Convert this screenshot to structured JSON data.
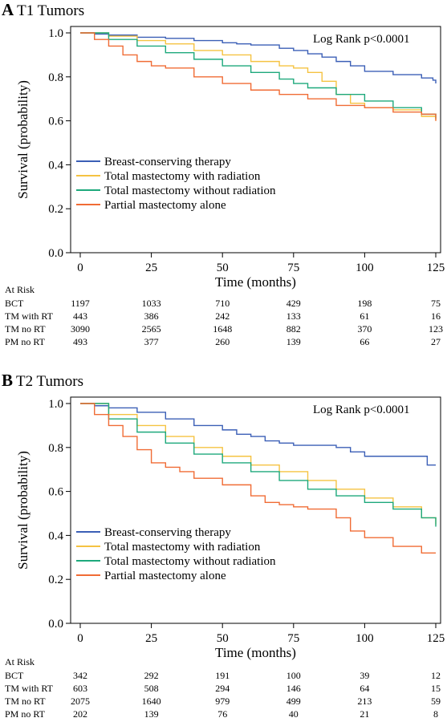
{
  "chart_data": [
    {
      "type": "line",
      "panel_letter": "A",
      "title": "T1 Tumors",
      "xlabel": "Time (months)",
      "ylabel": "Survival (probability)",
      "xlim": [
        0,
        125
      ],
      "ylim": [
        0,
        1.0
      ],
      "x_ticks": [
        0,
        25,
        50,
        75,
        100,
        125
      ],
      "y_ticks": [
        "0.0",
        "0.2",
        "0.4",
        "0.6",
        "0.8",
        "1.0"
      ],
      "annotation": "Log Rank p<0.0001",
      "legend_position": "bottom-left",
      "series": [
        {
          "name": "Breast-conserving therapy",
          "color": "#3b5fb6",
          "x": [
            0,
            5,
            10,
            20,
            30,
            40,
            50,
            55,
            60,
            70,
            75,
            80,
            85,
            90,
            95,
            100,
            110,
            120,
            124,
            125
          ],
          "y": [
            1.0,
            0.995,
            0.99,
            0.98,
            0.975,
            0.965,
            0.955,
            0.95,
            0.945,
            0.93,
            0.92,
            0.905,
            0.89,
            0.87,
            0.85,
            0.825,
            0.81,
            0.795,
            0.785,
            0.77
          ]
        },
        {
          "name": "Total mastectomy with radiation",
          "color": "#f5c342",
          "x": [
            0,
            10,
            20,
            30,
            40,
            50,
            60,
            70,
            75,
            80,
            85,
            90,
            95,
            100,
            110,
            120,
            125
          ],
          "y": [
            1.0,
            0.985,
            0.965,
            0.95,
            0.92,
            0.9,
            0.87,
            0.85,
            0.84,
            0.82,
            0.78,
            0.72,
            0.68,
            0.66,
            0.65,
            0.62,
            0.6
          ]
        },
        {
          "name": "Total mastectomy without radiation",
          "color": "#1ea97c",
          "x": [
            0,
            10,
            20,
            30,
            40,
            50,
            60,
            70,
            75,
            80,
            90,
            100,
            110,
            120,
            125
          ],
          "y": [
            1.0,
            0.97,
            0.94,
            0.91,
            0.88,
            0.85,
            0.82,
            0.79,
            0.77,
            0.75,
            0.72,
            0.69,
            0.66,
            0.63,
            0.61
          ]
        },
        {
          "name": "Partial mastectomy alone",
          "color": "#f06c35",
          "x": [
            0,
            5,
            10,
            15,
            20,
            25,
            30,
            40,
            50,
            60,
            70,
            80,
            90,
            100,
            110,
            120,
            125
          ],
          "y": [
            1.0,
            0.97,
            0.94,
            0.9,
            0.87,
            0.85,
            0.84,
            0.8,
            0.77,
            0.74,
            0.72,
            0.7,
            0.67,
            0.66,
            0.64,
            0.63,
            0.6
          ]
        }
      ],
      "at_risk": {
        "header": "At Risk",
        "rows": [
          {
            "label": "BCT",
            "values": [
              1197,
              1033,
              710,
              429,
              198,
              75
            ]
          },
          {
            "label": "TM with RT",
            "values": [
              443,
              386,
              242,
              133,
              61,
              16
            ]
          },
          {
            "label": "TM no RT",
            "values": [
              3090,
              2565,
              1648,
              882,
              370,
              123
            ]
          },
          {
            "label": "PM no RT",
            "values": [
              493,
              377,
              260,
              139,
              66,
              27
            ]
          }
        ]
      }
    },
    {
      "type": "line",
      "panel_letter": "B",
      "title": "T2 Tumors",
      "xlabel": "Time (months)",
      "ylabel": "Survival (probability)",
      "xlim": [
        0,
        125
      ],
      "ylim": [
        0,
        1.0
      ],
      "x_ticks": [
        0,
        25,
        50,
        75,
        100,
        125
      ],
      "y_ticks": [
        "0.0",
        "0.2",
        "0.4",
        "0.6",
        "0.8",
        "1.0"
      ],
      "annotation": "Log Rank p<0.0001",
      "legend_position": "bottom-left",
      "series": [
        {
          "name": "Breast-conserving therapy",
          "color": "#3b5fb6",
          "x": [
            0,
            5,
            10,
            20,
            30,
            40,
            50,
            55,
            60,
            65,
            70,
            75,
            80,
            90,
            95,
            100,
            110,
            120,
            122,
            125
          ],
          "y": [
            1.0,
            0.99,
            0.98,
            0.96,
            0.93,
            0.9,
            0.88,
            0.86,
            0.85,
            0.83,
            0.82,
            0.81,
            0.81,
            0.8,
            0.78,
            0.76,
            0.76,
            0.76,
            0.72,
            0.72
          ]
        },
        {
          "name": "Total mastectomy with radiation",
          "color": "#f5c342",
          "x": [
            0,
            10,
            20,
            30,
            40,
            50,
            60,
            70,
            80,
            90,
            100,
            110,
            120,
            125
          ],
          "y": [
            1.0,
            0.95,
            0.9,
            0.85,
            0.8,
            0.76,
            0.72,
            0.69,
            0.65,
            0.61,
            0.57,
            0.53,
            0.48,
            0.45
          ]
        },
        {
          "name": "Total mastectomy without radiation",
          "color": "#1ea97c",
          "x": [
            0,
            10,
            20,
            30,
            40,
            50,
            60,
            70,
            80,
            90,
            100,
            110,
            120,
            125
          ],
          "y": [
            1.0,
            0.93,
            0.87,
            0.82,
            0.77,
            0.73,
            0.69,
            0.65,
            0.61,
            0.58,
            0.55,
            0.52,
            0.48,
            0.44
          ]
        },
        {
          "name": "Partial mastectomy alone",
          "color": "#f06c35",
          "x": [
            0,
            5,
            10,
            15,
            20,
            25,
            30,
            35,
            40,
            50,
            60,
            65,
            70,
            75,
            80,
            90,
            95,
            100,
            110,
            120,
            125
          ],
          "y": [
            1.0,
            0.95,
            0.9,
            0.85,
            0.79,
            0.73,
            0.71,
            0.69,
            0.66,
            0.63,
            0.58,
            0.55,
            0.54,
            0.53,
            0.52,
            0.48,
            0.42,
            0.39,
            0.35,
            0.32,
            0.32
          ]
        }
      ],
      "at_risk": {
        "header": "At Risk",
        "rows": [
          {
            "label": "BCT",
            "values": [
              342,
              292,
              191,
              100,
              39,
              12
            ]
          },
          {
            "label": "TM with RT",
            "values": [
              603,
              508,
              294,
              146,
              64,
              15
            ]
          },
          {
            "label": "TM no RT",
            "values": [
              2075,
              1640,
              979,
              499,
              213,
              59
            ]
          },
          {
            "label": "PM no RT",
            "values": [
              202,
              139,
              76,
              40,
              21,
              8
            ]
          }
        ]
      }
    }
  ]
}
